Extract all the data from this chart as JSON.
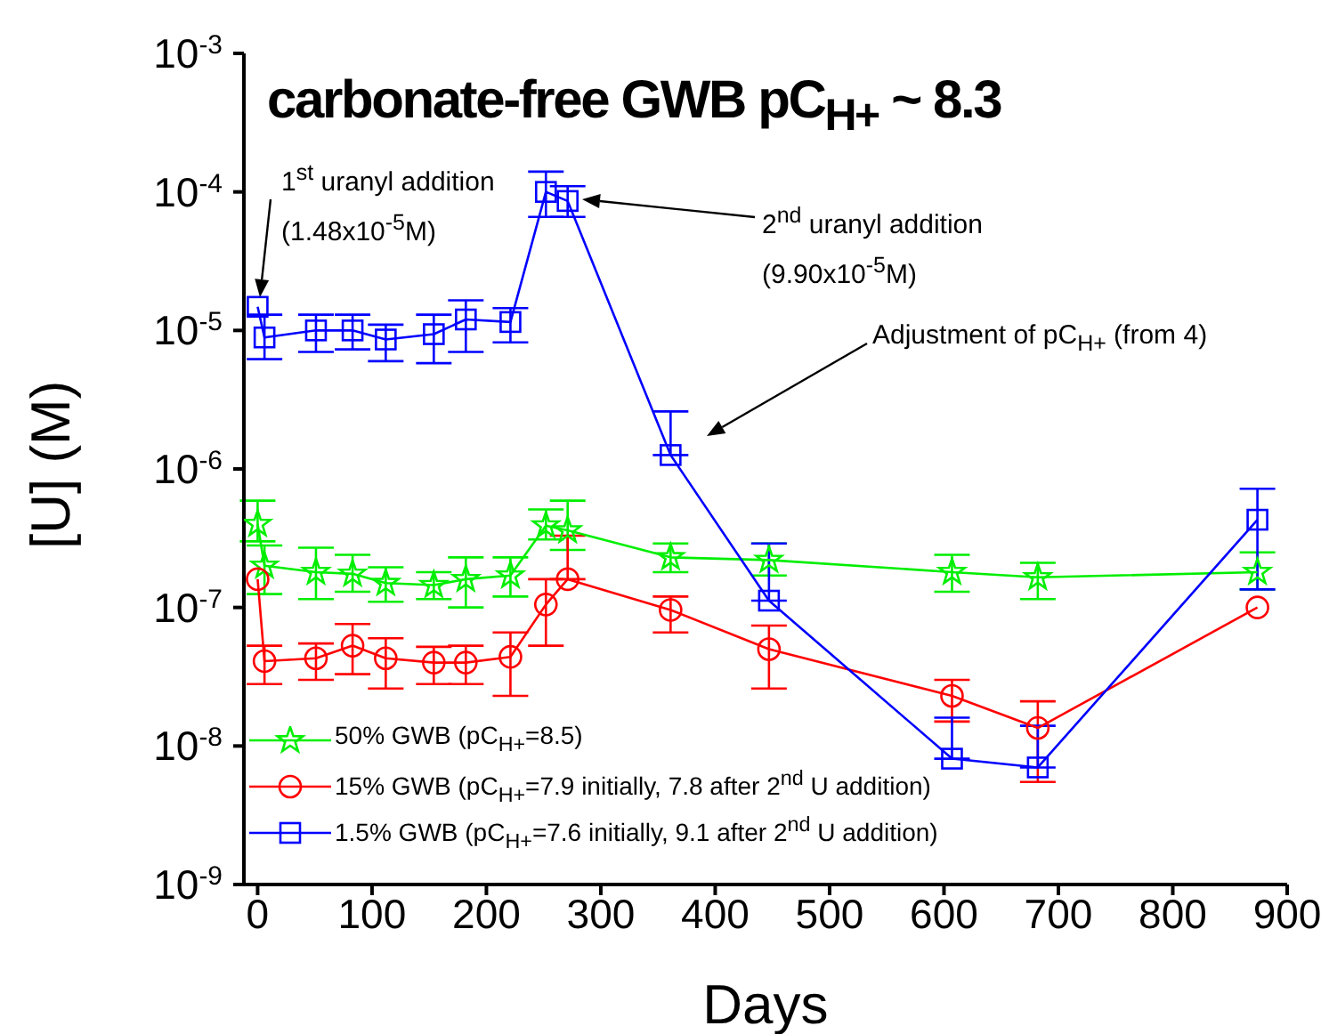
{
  "chart_data": {
    "type": "line",
    "title": "carbonate-free GWB  pC$_{H+}$ ~ 8.3",
    "xlabel": "Days",
    "ylabel": "[U] (M)",
    "log": "y",
    "xlim": [
      -12,
      900
    ],
    "xticks": [
      0,
      100,
      200,
      300,
      400,
      500,
      600,
      700,
      800,
      900
    ],
    "ylim": [
      1e-09,
      0.001
    ],
    "yticks": [
      {
        "value": 1e-09,
        "label": "10$^{-9}$"
      },
      {
        "value": 1e-08,
        "label": "10$^{-8}$"
      },
      {
        "value": 1e-07,
        "label": "10$^{-7}$"
      },
      {
        "value": 1e-06,
        "label": "10$^{-6}$"
      },
      {
        "value": 1e-05,
        "label": "10$^{-5}$"
      },
      {
        "value": 0.0001,
        "label": "10$^{-4}$"
      },
      {
        "value": 0.001,
        "label": "10$^{-3}$"
      }
    ],
    "legend": "bottom left",
    "series": [
      {
        "name": "50% GWB (pC$_{H+}$=8.5)",
        "color": "#00ee00",
        "marker": "star",
        "x": [
          0,
          6,
          51,
          83,
          112,
          154,
          182,
          221,
          252,
          271,
          361,
          447,
          607,
          682,
          874
        ],
        "values": [
          4e-07,
          2e-07,
          1.8e-07,
          1.75e-07,
          1.5e-07,
          1.45e-07,
          1.6e-07,
          1.7e-07,
          3.9e-07,
          3.6e-07,
          2.3e-07,
          2.2e-07,
          1.8e-07,
          1.65e-07,
          1.8e-07
        ],
        "errors": [
          [
            3e-07,
            5.9e-07
          ],
          [
            1.25e-07,
            2.8e-07
          ],
          [
            1.15e-07,
            2.7e-07
          ],
          [
            1.3e-07,
            2.4e-07
          ],
          [
            1.1e-07,
            1.95e-07
          ],
          [
            1.15e-07,
            1.8e-07
          ],
          [
            1e-07,
            2.3e-07
          ],
          [
            1.2e-07,
            2.3e-07
          ],
          [
            3.1e-07,
            5.1e-07
          ],
          [
            2.6e-07,
            5.9e-07
          ],
          [
            1.8e-07,
            2.9e-07
          ],
          [
            1.7e-07,
            2.9e-07
          ],
          [
            1.3e-07,
            2.4e-07
          ],
          [
            1.15e-07,
            2.1e-07
          ],
          [
            1.35e-07,
            2.5e-07
          ]
        ]
      },
      {
        "name": "15% GWB (pC$_{H+}$=7.9 initially, 7.8 after 2$^{nd}$ U addition)",
        "color": "#ff0000",
        "marker": "circle",
        "x": [
          0,
          6,
          51,
          83,
          112,
          154,
          182,
          221,
          252,
          271,
          361,
          447,
          607,
          682,
          874
        ],
        "values": [
          1.6e-07,
          4.1e-08,
          4.3e-08,
          5.3e-08,
          4.3e-08,
          4e-08,
          4e-08,
          4.4e-08,
          1.05e-07,
          1.6e-07,
          9.6e-08,
          5e-08,
          2.3e-08,
          1.35e-08,
          1e-07
        ],
        "errors": [
          null,
          [
            2.8e-08,
            5.3e-08
          ],
          [
            3e-08,
            5.5e-08
          ],
          [
            3.3e-08,
            7.6e-08
          ],
          [
            2.6e-08,
            6e-08
          ],
          [
            2.8e-08,
            5.2e-08
          ],
          [
            2.8e-08,
            5.3e-08
          ],
          [
            2.3e-08,
            6.6e-08
          ],
          [
            5.3e-08,
            1.6e-07
          ],
          [
            1.6e-07,
            3.3e-07
          ],
          [
            6.6e-08,
            1.2e-07
          ],
          [
            2.6e-08,
            7.4e-08
          ],
          [
            1.5e-08,
            3e-08
          ],
          [
            5.5e-09,
            2.1e-08
          ],
          null
        ]
      },
      {
        "name": "1.5% GWB (pC$_{H+}$=7.6 initially, 9.1 after 2$^{nd}$ U addition)",
        "color": "#0000ff",
        "marker": "square",
        "x": [
          0,
          6,
          51,
          83,
          112,
          154,
          182,
          221,
          252,
          271,
          361,
          447,
          607,
          682,
          874
        ],
        "values": [
          1.48e-05,
          8.9e-06,
          1e-05,
          1e-05,
          8.6e-06,
          9.4e-06,
          1.2e-05,
          1.15e-05,
          0.0001,
          8.6e-05,
          1.26e-06,
          1.12e-07,
          8.1e-09,
          7e-09,
          4.3e-07
        ],
        "errors": [
          null,
          [
            6.2e-06,
            1.3e-05
          ],
          [
            7e-06,
            1.3e-05
          ],
          [
            7.3e-06,
            1.3e-05
          ],
          [
            6e-06,
            1.1e-05
          ],
          [
            5.8e-06,
            1.3e-05
          ],
          [
            7e-06,
            1.65e-05
          ],
          [
            8.2e-06,
            1.45e-05
          ],
          [
            6.6e-05,
            0.00014
          ],
          [
            6.6e-05,
            0.00011
          ],
          [
            1.26e-06,
            2.6e-06
          ],
          [
            1.12e-07,
            2.9e-07
          ],
          [
            8.1e-09,
            1.6e-08
          ],
          [
            7e-09,
            1.4e-08
          ],
          [
            1.35e-07,
            7.2e-07
          ]
        ]
      }
    ],
    "annotations": [
      "1$^{st}$ uranyl addition (1.48x10$^{-5}$M)",
      "2$^{nd}$ uranyl addition (9.90x10$^{-5}$M)",
      "Adjustment of pC$_{H+}$ (from 4)"
    ]
  }
}
